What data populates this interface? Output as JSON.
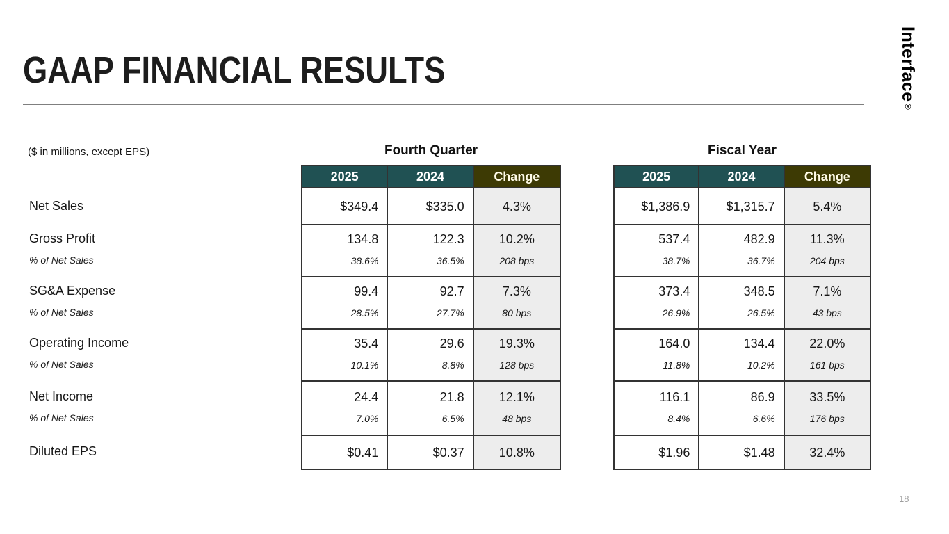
{
  "slide": {
    "title": "GAAP FINANCIAL RESULTS",
    "note": "($ in millions, except EPS)",
    "logo": "Interface",
    "logo_registered": "®",
    "page_number": "18"
  },
  "colors": {
    "header_teal": "#205153",
    "header_olive": "#3d3a04",
    "change_cell_bg": "#ededed",
    "table_border": "#333333",
    "rule_gray": "#7f7f7f"
  },
  "row_labels": [
    {
      "label": "Net Sales"
    },
    {
      "label": "Gross Profit",
      "sublabel": "% of Net Sales"
    },
    {
      "label": "SG&A Expense",
      "sublabel": "% of Net Sales"
    },
    {
      "label": "Operating Income",
      "sublabel": "% of Net Sales"
    },
    {
      "label": "Net Income",
      "sublabel": "% of Net Sales"
    },
    {
      "label": "Diluted EPS"
    }
  ],
  "tables": [
    {
      "title": "Fourth Quarter",
      "columns": [
        "2025",
        "2024",
        "Change"
      ],
      "rows": [
        {
          "main": [
            "$349.4",
            "$335.0",
            "4.3%"
          ]
        },
        {
          "main": [
            "134.8",
            "122.3",
            "10.2%"
          ],
          "sub": [
            "38.6%",
            "36.5%",
            "208 bps"
          ]
        },
        {
          "main": [
            "99.4",
            "92.7",
            "7.3%"
          ],
          "sub": [
            "28.5%",
            "27.7%",
            "80 bps"
          ]
        },
        {
          "main": [
            "35.4",
            "29.6",
            "19.3%"
          ],
          "sub": [
            "10.1%",
            "8.8%",
            "128 bps"
          ]
        },
        {
          "main": [
            "24.4",
            "21.8",
            "12.1%"
          ],
          "sub": [
            "7.0%",
            "6.5%",
            "48 bps"
          ]
        },
        {
          "main": [
            "$0.41",
            "$0.37",
            "10.8%"
          ]
        }
      ]
    },
    {
      "title": "Fiscal Year",
      "columns": [
        "2025",
        "2024",
        "Change"
      ],
      "rows": [
        {
          "main": [
            "$1,386.9",
            "$1,315.7",
            "5.4%"
          ]
        },
        {
          "main": [
            "537.4",
            "482.9",
            "11.3%"
          ],
          "sub": [
            "38.7%",
            "36.7%",
            "204 bps"
          ]
        },
        {
          "main": [
            "373.4",
            "348.5",
            "7.1%"
          ],
          "sub": [
            "26.9%",
            "26.5%",
            "43 bps"
          ]
        },
        {
          "main": [
            "164.0",
            "134.4",
            "22.0%"
          ],
          "sub": [
            "11.8%",
            "10.2%",
            "161 bps"
          ]
        },
        {
          "main": [
            "116.1",
            "86.9",
            "33.5%"
          ],
          "sub": [
            "8.4%",
            "6.6%",
            "176 bps"
          ]
        },
        {
          "main": [
            "$1.96",
            "$1.48",
            "32.4%"
          ]
        }
      ]
    }
  ]
}
